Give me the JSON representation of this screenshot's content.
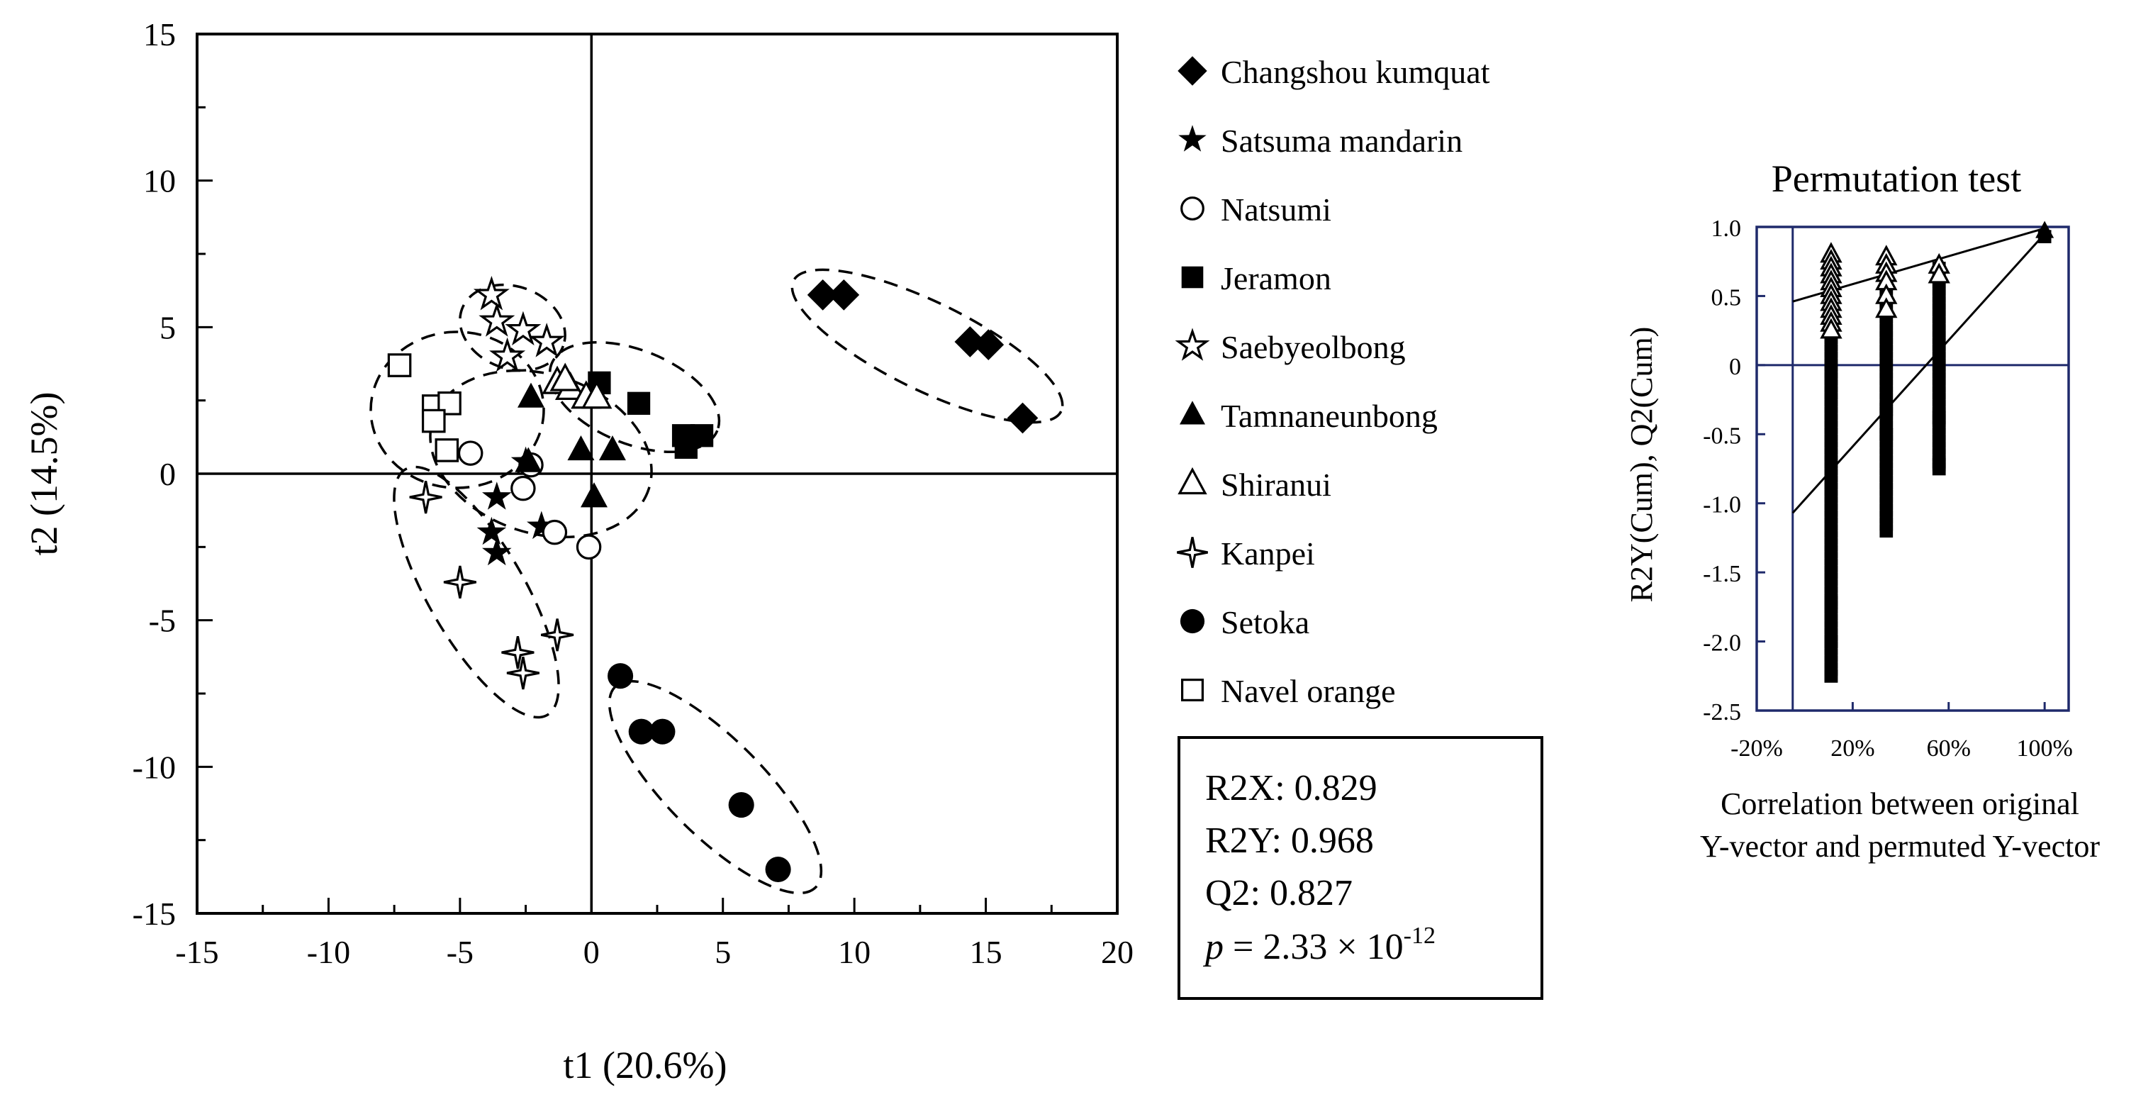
{
  "chart_data": [
    {
      "type": "scatter",
      "name": "OPLS-DA score plot",
      "xlabel": "t1 (20.6%)",
      "ylabel": "t2 (14.5%)",
      "xlim": [
        -15,
        20
      ],
      "ylim": [
        -15,
        15
      ],
      "xticks": [
        "-15",
        "-10",
        "-5",
        "0",
        "5",
        "10",
        "15",
        "20"
      ],
      "yticks": [
        "15",
        "10",
        "5",
        "0",
        "-5",
        "-10",
        "-15"
      ],
      "series": [
        {
          "name": "Changshou kumquat",
          "marker": "diamond",
          "points": [
            [
              8.8,
              6.1
            ],
            [
              9.6,
              6.1
            ],
            [
              14.4,
              4.5
            ],
            [
              15.1,
              4.4
            ],
            [
              16.4,
              1.9
            ]
          ]
        },
        {
          "name": "Satsuma mandarin",
          "marker": "star",
          "points": [
            [
              -3.6,
              -0.8
            ],
            [
              -3.8,
              -2.0
            ],
            [
              -3.6,
              -2.7
            ],
            [
              -1.9,
              -1.8
            ],
            [
              -2.5,
              0.4
            ]
          ]
        },
        {
          "name": "Natsumi",
          "marker": "circle-open",
          "points": [
            [
              -4.6,
              0.7
            ],
            [
              -2.3,
              0.3
            ],
            [
              -2.6,
              -0.5
            ],
            [
              -1.4,
              -2.0
            ],
            [
              -0.1,
              -2.5
            ]
          ]
        },
        {
          "name": "Jeramon",
          "marker": "square",
          "points": [
            [
              0.3,
              3.1
            ],
            [
              1.8,
              2.4
            ],
            [
              3.5,
              1.3
            ],
            [
              4.2,
              1.3
            ],
            [
              3.6,
              0.9
            ]
          ]
        },
        {
          "name": "Saebyeolbong",
          "marker": "star-open",
          "points": [
            [
              -3.8,
              6.1
            ],
            [
              -3.6,
              5.2
            ],
            [
              -2.6,
              4.9
            ],
            [
              -1.7,
              4.5
            ],
            [
              -3.2,
              4.0
            ]
          ]
        },
        {
          "name": "Tamnaneunbong",
          "marker": "triangle",
          "points": [
            [
              -2.3,
              2.6
            ],
            [
              -0.4,
              0.8
            ],
            [
              0.8,
              0.8
            ],
            [
              0.1,
              -0.8
            ],
            [
              -2.4,
              0.4
            ]
          ]
        },
        {
          "name": "Shiranui",
          "marker": "triangle-open",
          "points": [
            [
              -1.3,
              3.1
            ],
            [
              -0.8,
              2.9
            ],
            [
              -0.2,
              2.6
            ],
            [
              0.2,
              2.6
            ],
            [
              -1.0,
              3.2
            ]
          ]
        },
        {
          "name": "Kanpei",
          "marker": "star4-open",
          "points": [
            [
              -6.3,
              -0.8
            ],
            [
              -5.0,
              -3.7
            ],
            [
              -2.8,
              -6.1
            ],
            [
              -2.6,
              -6.8
            ],
            [
              -1.3,
              -5.5
            ]
          ]
        },
        {
          "name": "Setoka",
          "marker": "circle",
          "points": [
            [
              1.1,
              -6.9
            ],
            [
              1.9,
              -8.8
            ],
            [
              2.7,
              -8.8
            ],
            [
              5.7,
              -11.3
            ],
            [
              7.1,
              -13.5
            ]
          ]
        },
        {
          "name": "Navel orange",
          "marker": "square-open",
          "points": [
            [
              -7.3,
              3.7
            ],
            [
              -6.0,
              2.3
            ],
            [
              -5.4,
              2.4
            ],
            [
              -6.0,
              1.8
            ],
            [
              -5.5,
              0.8
            ]
          ]
        }
      ],
      "stats": {
        "r2x": "R2X: 0.829",
        "r2y": "R2Y: 0.968",
        "q2": "Q2: 0.827",
        "p_symbol": "p",
        "p_rest": " = 2.33 × 10",
        "p_exp": "-12"
      }
    },
    {
      "type": "scatter",
      "name": "Permutation test",
      "title": "Permutation test",
      "ylabel": "R2Y(Cum), Q2(Cum)",
      "xlabel_line1": "Correlation between original",
      "xlabel_line2": "Y-vector and permuted Y-vector",
      "xlim": [
        -0.2,
        1.1
      ],
      "ylim": [
        -2.5,
        1.0
      ],
      "xticks": [
        {
          "value": -0.2,
          "label": "-20%"
        },
        {
          "value": 0.2,
          "label": "20%"
        },
        {
          "value": 0.6,
          "label": "60%"
        },
        {
          "value": 1.0,
          "label": "100%"
        }
      ],
      "yticks": [
        {
          "value": 1.0,
          "label": "1.0"
        },
        {
          "value": 0.5,
          "label": "0.5"
        },
        {
          "value": 0.0,
          "label": "0"
        },
        {
          "value": -0.5,
          "label": "-0.5"
        },
        {
          "value": -1.0,
          "label": "-1.0"
        },
        {
          "value": -1.5,
          "label": "-1.5"
        },
        {
          "value": -2.0,
          "label": "-2.0"
        },
        {
          "value": -2.5,
          "label": "-2.5"
        }
      ],
      "r2_series": {
        "name": "R2Y(Cum)",
        "marker": "triangle-open",
        "points": [
          [
            0.11,
            0.8
          ],
          [
            0.11,
            0.75
          ],
          [
            0.11,
            0.7
          ],
          [
            0.11,
            0.65
          ],
          [
            0.11,
            0.6
          ],
          [
            0.11,
            0.55
          ],
          [
            0.11,
            0.5
          ],
          [
            0.11,
            0.45
          ],
          [
            0.11,
            0.4
          ],
          [
            0.11,
            0.35
          ],
          [
            0.11,
            0.3
          ],
          [
            0.11,
            0.25
          ],
          [
            0.34,
            0.78
          ],
          [
            0.34,
            0.72
          ],
          [
            0.34,
            0.66
          ],
          [
            0.34,
            0.6
          ],
          [
            0.34,
            0.5
          ],
          [
            0.34,
            0.4
          ],
          [
            0.56,
            0.72
          ],
          [
            0.56,
            0.65
          ],
          [
            1.0,
            0.97
          ]
        ],
        "regression_line": [
          [
            -0.05,
            0.46
          ],
          [
            1.0,
            0.99
          ]
        ]
      },
      "q2_series": {
        "name": "Q2(Cum)",
        "marker": "square",
        "x_values": [
          0.11,
          0.34,
          0.56,
          1.0
        ],
        "min_values": [
          -2.25,
          -1.2,
          -0.75,
          0.93
        ],
        "max_values": [
          0.75,
          0.65,
          0.72,
          0.96
        ],
        "outliers": [
          [
            0.11,
            -2.0
          ],
          [
            0.11,
            -2.25
          ],
          [
            0.11,
            -1.72
          ],
          [
            0.34,
            -0.32
          ],
          [
            0.34,
            -0.5
          ],
          [
            0.56,
            -0.38
          ],
          [
            0.56,
            -0.72
          ]
        ],
        "regression_line": [
          [
            -0.05,
            -1.07
          ],
          [
            1.0,
            0.95
          ]
        ]
      }
    }
  ]
}
